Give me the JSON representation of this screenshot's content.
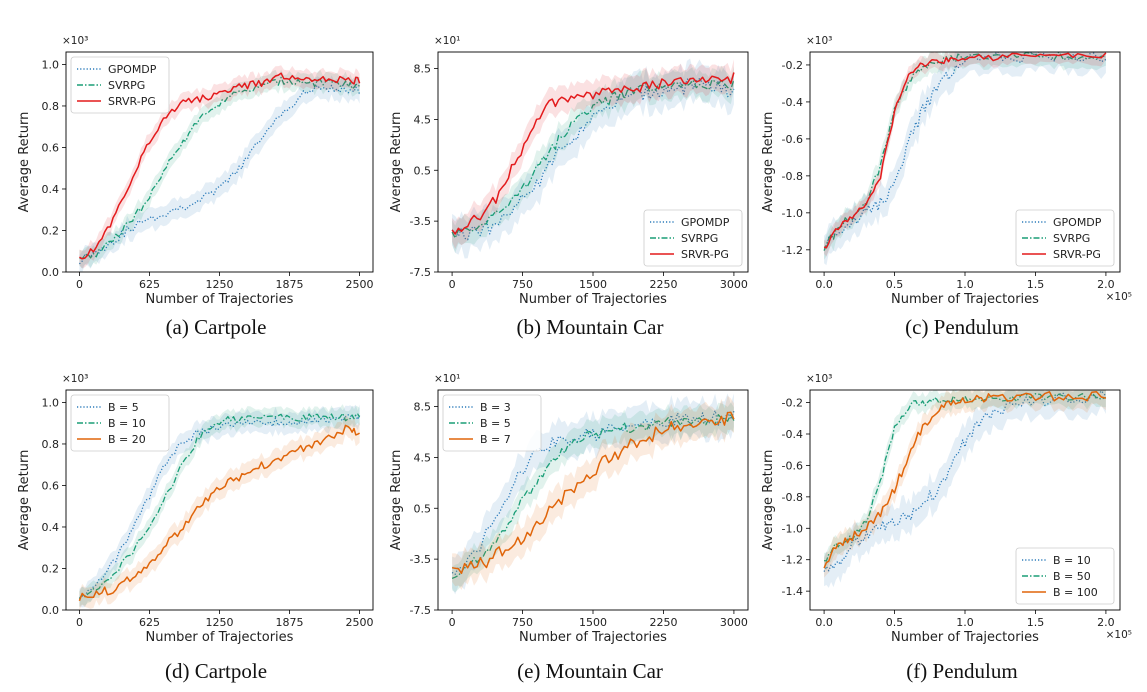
{
  "colors": {
    "gpomdp": "#2b7bba",
    "svrpg": "#1a9e77",
    "srvrpg": "#e31a1c",
    "b_small": "#2b7bba",
    "b_mid": "#1a9e77",
    "b_large": "#e0650a"
  },
  "chart_data": [
    {
      "type": "line",
      "caption": "(a) Cartpole",
      "xlabel": "Number of Trajectories",
      "ylabel": "Average Return",
      "y_multiplier": "×10³",
      "x_multiplier": "",
      "xticks": [
        "0",
        "625",
        "1250",
        "1875",
        "2500"
      ],
      "yticks": [
        "0.0",
        "0.2",
        "0.4",
        "0.6",
        "0.8",
        "1.0"
      ],
      "xlim": [
        -120,
        2620
      ],
      "ylim": [
        0.0,
        1.06
      ],
      "legend_position": "top-left",
      "series": [
        {
          "name": "GPOMDP",
          "color_key": "gpomdp",
          "style": "dotted",
          "x": [
            0,
            150,
            300,
            450,
            600,
            750,
            900,
            1050,
            1200,
            1350,
            1500,
            1650,
            1800,
            1950,
            2100,
            2250,
            2400,
            2500
          ],
          "y": [
            0.06,
            0.1,
            0.15,
            0.21,
            0.25,
            0.28,
            0.31,
            0.34,
            0.38,
            0.45,
            0.55,
            0.66,
            0.76,
            0.84,
            0.88,
            0.89,
            0.88,
            0.87
          ],
          "band": 0.07
        },
        {
          "name": "SVRPG",
          "color_key": "svrpg",
          "style": "dashdot",
          "x": [
            0,
            150,
            300,
            450,
            600,
            750,
            900,
            1050,
            1200,
            1350,
            1500,
            1650,
            1800,
            1950,
            2100,
            2250,
            2400,
            2500
          ],
          "y": [
            0.06,
            0.09,
            0.15,
            0.24,
            0.34,
            0.48,
            0.61,
            0.72,
            0.8,
            0.85,
            0.87,
            0.9,
            0.92,
            0.92,
            0.91,
            0.91,
            0.9,
            0.9
          ],
          "band": 0.06
        },
        {
          "name": "SRVR-PG",
          "color_key": "srvrpg",
          "style": "solid",
          "x": [
            0,
            150,
            300,
            450,
            600,
            750,
            900,
            1050,
            1200,
            1350,
            1500,
            1650,
            1800,
            1950,
            2100,
            2250,
            2400,
            2500
          ],
          "y": [
            0.06,
            0.12,
            0.25,
            0.42,
            0.6,
            0.74,
            0.81,
            0.83,
            0.85,
            0.88,
            0.9,
            0.91,
            0.94,
            0.93,
            0.92,
            0.93,
            0.92,
            0.92
          ],
          "band": 0.06
        }
      ]
    },
    {
      "type": "line",
      "caption": "(b) Mountain Car",
      "xlabel": "Number of Trajectories",
      "ylabel": "Average Return",
      "y_multiplier": "×10¹",
      "x_multiplier": "",
      "xticks": [
        "0",
        "750",
        "1500",
        "2250",
        "3000"
      ],
      "yticks": [
        "-7.5",
        "-3.5",
        "0.5",
        "4.5",
        "8.5"
      ],
      "xlim": [
        -150,
        3150
      ],
      "ylim": [
        -7.5,
        9.8
      ],
      "legend_position": "bottom-right",
      "series": [
        {
          "name": "GPOMDP",
          "color_key": "gpomdp",
          "style": "dotted",
          "x": [
            0,
            200,
            400,
            600,
            800,
            1000,
            1200,
            1400,
            1600,
            1800,
            2000,
            2200,
            2400,
            2600,
            2800,
            3000
          ],
          "y": [
            -4.7,
            -4.5,
            -4.0,
            -3.0,
            -1.5,
            0.5,
            2.5,
            4.0,
            5.0,
            6.0,
            6.5,
            6.8,
            7.0,
            7.2,
            7.0,
            6.8
          ],
          "band": 2.0
        },
        {
          "name": "SVRPG",
          "color_key": "svrpg",
          "style": "dashdot",
          "x": [
            0,
            200,
            400,
            600,
            800,
            1000,
            1200,
            1400,
            1600,
            1800,
            2000,
            2200,
            2400,
            2600,
            2800,
            3000
          ],
          "y": [
            -4.6,
            -4.3,
            -3.5,
            -2.0,
            -0.5,
            1.5,
            3.5,
            5.0,
            5.8,
            6.4,
            6.8,
            7.0,
            7.1,
            7.2,
            7.2,
            7.2
          ],
          "band": 1.5
        },
        {
          "name": "SRVR-PG",
          "color_key": "srvrpg",
          "style": "solid",
          "x": [
            0,
            200,
            400,
            600,
            800,
            1000,
            1200,
            1400,
            1600,
            1800,
            2000,
            2200,
            2400,
            2600,
            2800,
            3000
          ],
          "y": [
            -4.2,
            -3.5,
            -2.5,
            0.0,
            3.0,
            5.5,
            6.0,
            6.2,
            6.5,
            6.8,
            7.0,
            7.2,
            7.4,
            7.5,
            7.6,
            7.8
          ],
          "band": 1.5
        }
      ]
    },
    {
      "type": "line",
      "caption": "(c) Pendulum",
      "xlabel": "Number of Trajectories",
      "ylabel": "Average Return",
      "y_multiplier": "×10³",
      "x_multiplier": "×10⁵",
      "xticks": [
        "0.0",
        "0.5",
        "1.0",
        "1.5",
        "2.0"
      ],
      "yticks": [
        "-1.2",
        "-1.0",
        "-0.8",
        "-0.6",
        "-0.4",
        "-0.2"
      ],
      "xlim": [
        -0.1,
        2.1
      ],
      "ylim": [
        -1.32,
        -0.13
      ],
      "legend_position": "bottom-right",
      "series": [
        {
          "name": "GPOMDP",
          "color_key": "gpomdp",
          "style": "dotted",
          "x": [
            0,
            0.1,
            0.2,
            0.3,
            0.4,
            0.5,
            0.6,
            0.7,
            0.8,
            0.9,
            1.0,
            1.2,
            1.4,
            1.6,
            1.8,
            2.0
          ],
          "y": [
            -1.2,
            -1.1,
            -1.05,
            -1.0,
            -0.95,
            -0.85,
            -0.62,
            -0.45,
            -0.33,
            -0.25,
            -0.18,
            -0.16,
            -0.16,
            -0.15,
            -0.15,
            -0.15
          ],
          "band": 0.12
        },
        {
          "name": "SVRPG",
          "color_key": "svrpg",
          "style": "dashdot",
          "x": [
            0,
            0.1,
            0.2,
            0.3,
            0.4,
            0.5,
            0.6,
            0.7,
            0.8,
            0.9,
            1.0,
            1.2,
            1.4,
            1.6,
            1.8,
            2.0
          ],
          "y": [
            -1.2,
            -1.08,
            -1.02,
            -0.95,
            -0.75,
            -0.45,
            -0.3,
            -0.22,
            -0.18,
            -0.17,
            -0.16,
            -0.16,
            -0.15,
            -0.15,
            -0.15,
            -0.15
          ],
          "band": 0.08
        },
        {
          "name": "SRVR-PG",
          "color_key": "srvrpg",
          "style": "solid",
          "x": [
            0,
            0.1,
            0.2,
            0.3,
            0.4,
            0.5,
            0.6,
            0.7,
            0.8,
            0.9,
            1.0,
            1.2,
            1.4,
            1.6,
            1.8,
            2.0
          ],
          "y": [
            -1.2,
            -1.08,
            -1.02,
            -0.95,
            -0.8,
            -0.45,
            -0.25,
            -0.2,
            -0.18,
            -0.17,
            -0.16,
            -0.16,
            -0.15,
            -0.15,
            -0.15,
            -0.15
          ],
          "band": 0.06
        }
      ]
    },
    {
      "type": "line",
      "caption": "(d) Cartpole",
      "xlabel": "Number of Trajectories",
      "ylabel": "Average Return",
      "y_multiplier": "×10³",
      "x_multiplier": "",
      "xticks": [
        "0",
        "625",
        "1250",
        "1875",
        "2500"
      ],
      "yticks": [
        "0.0",
        "0.2",
        "0.4",
        "0.6",
        "0.8",
        "1.0"
      ],
      "xlim": [
        -120,
        2620
      ],
      "ylim": [
        0.0,
        1.06
      ],
      "legend_position": "top-left",
      "series": [
        {
          "name": "B = 5",
          "color_key": "b_small",
          "style": "dotted",
          "x": [
            0,
            150,
            300,
            450,
            600,
            750,
            900,
            1050,
            1200,
            1350,
            1500,
            1650,
            1800,
            1950,
            2100,
            2250,
            2400,
            2500
          ],
          "y": [
            0.06,
            0.12,
            0.22,
            0.36,
            0.52,
            0.68,
            0.8,
            0.85,
            0.87,
            0.89,
            0.9,
            0.9,
            0.91,
            0.91,
            0.92,
            0.92,
            0.92,
            0.93
          ],
          "band": 0.07
        },
        {
          "name": "B = 10",
          "color_key": "b_mid",
          "style": "dashdot",
          "x": [
            0,
            150,
            300,
            450,
            600,
            750,
            900,
            1050,
            1200,
            1350,
            1500,
            1650,
            1800,
            1950,
            2100,
            2250,
            2400,
            2500
          ],
          "y": [
            0.06,
            0.1,
            0.17,
            0.27,
            0.38,
            0.52,
            0.68,
            0.82,
            0.9,
            0.92,
            0.92,
            0.93,
            0.93,
            0.92,
            0.93,
            0.93,
            0.93,
            0.93
          ],
          "band": 0.06
        },
        {
          "name": "B = 20",
          "color_key": "b_large",
          "style": "solid",
          "x": [
            0,
            150,
            300,
            450,
            600,
            750,
            900,
            1050,
            1200,
            1350,
            1500,
            1650,
            1800,
            1950,
            2100,
            2250,
            2400,
            2500
          ],
          "y": [
            0.06,
            0.08,
            0.1,
            0.15,
            0.22,
            0.3,
            0.38,
            0.48,
            0.56,
            0.62,
            0.66,
            0.7,
            0.74,
            0.77,
            0.8,
            0.84,
            0.88,
            0.84
          ],
          "band": 0.07
        }
      ]
    },
    {
      "type": "line",
      "caption": "(e) Mountain Car",
      "xlabel": "Number of Trajectories",
      "ylabel": "Average Return",
      "y_multiplier": "×10¹",
      "x_multiplier": "",
      "xticks": [
        "0",
        "750",
        "1500",
        "2250",
        "3000"
      ],
      "yticks": [
        "-7.5",
        "-3.5",
        "0.5",
        "4.5",
        "8.5"
      ],
      "xlim": [
        -150,
        3150
      ],
      "ylim": [
        -7.5,
        9.8
      ],
      "legend_position": "top-left",
      "series": [
        {
          "name": "B = 3",
          "color_key": "b_small",
          "style": "dotted",
          "x": [
            0,
            200,
            400,
            600,
            800,
            1000,
            1200,
            1400,
            1600,
            1800,
            2000,
            2200,
            2400,
            2600,
            2800,
            3000
          ],
          "y": [
            -4.5,
            -3.5,
            -1.0,
            1.5,
            4.0,
            5.5,
            6.0,
            6.2,
            6.5,
            6.7,
            7.0,
            7.2,
            7.4,
            7.5,
            7.6,
            7.8
          ],
          "band": 2.0
        },
        {
          "name": "B = 5",
          "color_key": "b_mid",
          "style": "dashdot",
          "x": [
            0,
            200,
            400,
            600,
            800,
            1000,
            1200,
            1400,
            1600,
            1800,
            2000,
            2200,
            2400,
            2600,
            2800,
            3000
          ],
          "y": [
            -4.6,
            -4.0,
            -2.5,
            -0.5,
            1.5,
            3.5,
            5.0,
            6.0,
            6.5,
            6.8,
            7.0,
            7.2,
            7.3,
            7.4,
            7.5,
            7.6
          ],
          "band": 1.5
        },
        {
          "name": "B = 7",
          "color_key": "b_large",
          "style": "solid",
          "x": [
            0,
            200,
            400,
            600,
            800,
            1000,
            1200,
            1400,
            1600,
            1800,
            2000,
            2200,
            2400,
            2600,
            2800,
            3000
          ],
          "y": [
            -4.6,
            -4.2,
            -3.5,
            -2.5,
            -1.5,
            0.0,
            1.5,
            3.0,
            4.0,
            5.0,
            5.8,
            6.5,
            7.0,
            7.3,
            7.5,
            7.6
          ],
          "band": 1.8
        }
      ]
    },
    {
      "type": "line",
      "caption": "(f) Pendulum",
      "xlabel": "Number of Trajectories",
      "ylabel": "Average Return",
      "y_multiplier": "×10³",
      "x_multiplier": "×10⁵",
      "xticks": [
        "0.0",
        "0.5",
        "1.0",
        "1.5",
        "2.0"
      ],
      "yticks": [
        "-1.4",
        "-1.2",
        "-1.0",
        "-0.8",
        "-0.6",
        "-0.4",
        "-0.2"
      ],
      "xlim": [
        -0.1,
        2.1
      ],
      "ylim": [
        -1.52,
        -0.12
      ],
      "legend_position": "bottom-right",
      "series": [
        {
          "name": "B = 10",
          "color_key": "b_small",
          "style": "dotted",
          "x": [
            0,
            0.1,
            0.2,
            0.3,
            0.4,
            0.5,
            0.6,
            0.7,
            0.8,
            0.9,
            1.0,
            1.1,
            1.2,
            1.4,
            1.6,
            1.8,
            2.0
          ],
          "y": [
            -1.25,
            -1.2,
            -1.12,
            -1.05,
            -1.0,
            -0.98,
            -0.92,
            -0.85,
            -0.75,
            -0.6,
            -0.45,
            -0.32,
            -0.25,
            -0.2,
            -0.18,
            -0.17,
            -0.17
          ],
          "band": 0.15
        },
        {
          "name": "B = 50",
          "color_key": "b_mid",
          "style": "dashdot",
          "x": [
            0,
            0.1,
            0.2,
            0.3,
            0.4,
            0.5,
            0.6,
            0.7,
            0.8,
            0.9,
            1.0,
            1.1,
            1.2,
            1.4,
            1.6,
            1.8,
            2.0
          ],
          "y": [
            -1.2,
            -1.1,
            -1.05,
            -0.95,
            -0.7,
            -0.35,
            -0.22,
            -0.2,
            -0.19,
            -0.18,
            -0.18,
            -0.17,
            -0.17,
            -0.17,
            -0.16,
            -0.16,
            -0.16
          ],
          "band": 0.08
        },
        {
          "name": "B = 100",
          "color_key": "b_large",
          "style": "solid",
          "x": [
            0,
            0.1,
            0.2,
            0.3,
            0.4,
            0.5,
            0.6,
            0.7,
            0.8,
            0.9,
            1.0,
            1.1,
            1.2,
            1.4,
            1.6,
            1.8,
            2.0
          ],
          "y": [
            -1.25,
            -1.1,
            -1.05,
            -1.0,
            -0.9,
            -0.75,
            -0.55,
            -0.35,
            -0.25,
            -0.2,
            -0.18,
            -0.17,
            -0.17,
            -0.17,
            -0.16,
            -0.16,
            -0.16
          ],
          "band": 0.1
        }
      ]
    }
  ]
}
